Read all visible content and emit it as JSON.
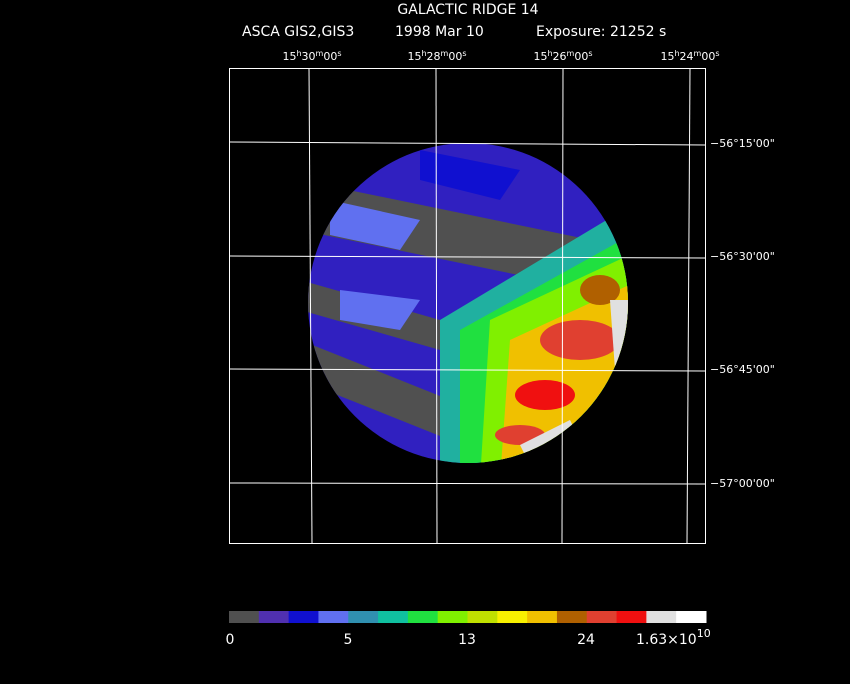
{
  "header": {
    "title": "GALACTIC RIDGE 14",
    "instrument": "ASCA GIS2,GIS3",
    "date": "1998 Mar 10",
    "exposure": "Exposure: 21252 s"
  },
  "ra_labels": [
    [
      "15",
      "h",
      "30",
      "m",
      "00",
      "s"
    ],
    [
      "15",
      "h",
      "28",
      "m",
      "00",
      "s"
    ],
    [
      "15",
      "h",
      "26",
      "m",
      "00",
      "s"
    ],
    [
      "15",
      "h",
      "24",
      "m",
      "00",
      "s"
    ]
  ],
  "dec_labels": [
    "−56°15'00\"",
    "−56°30'00\"",
    "−56°45'00\"",
    "−57°00'00\""
  ],
  "colorbar": {
    "colors": [
      "#505050",
      "#5030b0",
      "#1010d0",
      "#6070f0",
      "#3090b0",
      "#10c0a0",
      "#20e040",
      "#80f000",
      "#c0e000",
      "#f8f000",
      "#f0c000",
      "#b06000",
      "#e04030",
      "#f01010",
      "#e0e0e0",
      "#ffffff"
    ],
    "labels": [
      "0",
      "5",
      "13",
      "24"
    ],
    "max_label": {
      "mantissa": "1.63×10",
      "exponent": "10"
    }
  }
}
